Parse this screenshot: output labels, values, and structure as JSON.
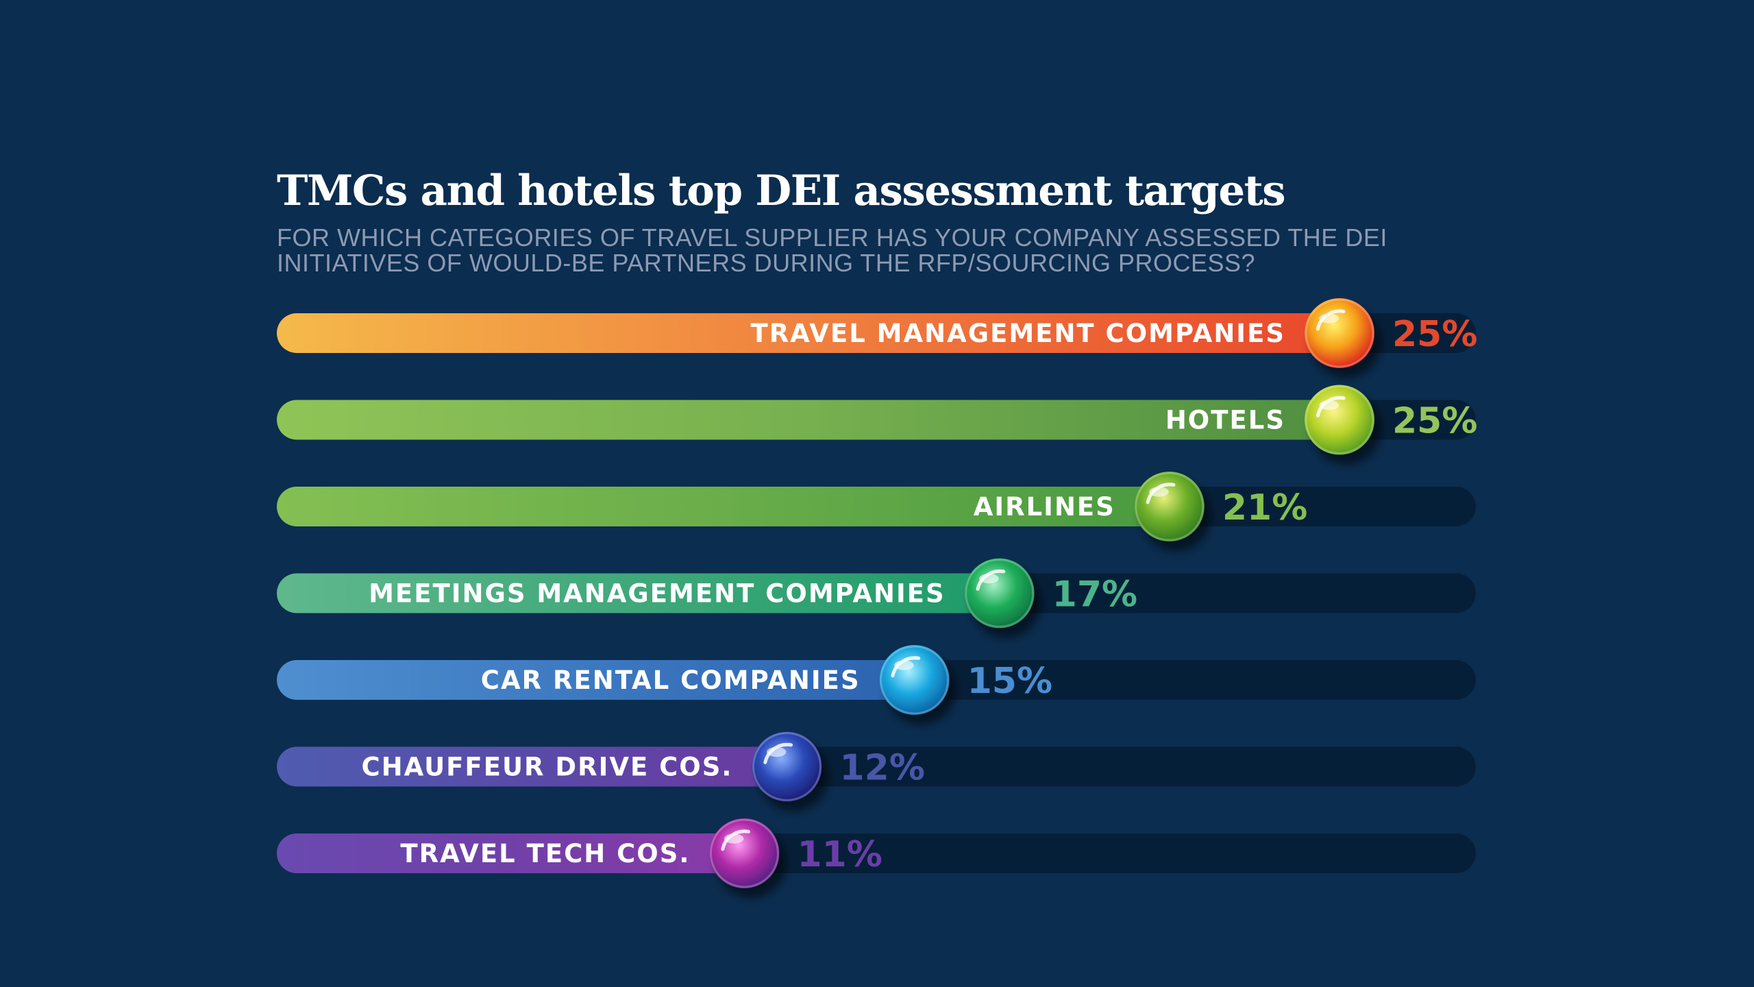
{
  "chart_data": {
    "type": "bar",
    "orientation": "horizontal",
    "title": "TMCs and hotels top DEI assessment targets",
    "subtitle": "FOR WHICH CATEGORIES OF TRAVEL SUPPLIER HAS YOUR COMPANY ASSESSED THE DEI INITIATIVES OF WOULD-BE PARTNERS DURING THE RFP/SOURCING PROCESS?",
    "xlim": [
      0,
      25
    ],
    "grid": false,
    "legend": "none",
    "bars": [
      {
        "label": "TRAVEL MANAGEMENT COMPANIES",
        "value": 25,
        "value_label": "25%",
        "colors": [
          "#f5b94a",
          "#f0813f",
          "#e9472c"
        ],
        "text_color": "#e5492d",
        "ball": [
          "#fff36a",
          "#f7a11a",
          "#d91e1e"
        ]
      },
      {
        "label": "HOTELS",
        "value": 25,
        "value_label": "25%",
        "colors": [
          "#8fc457",
          "#77b04f",
          "#4f8f40"
        ],
        "text_color": "#94c45a",
        "ball": [
          "#fff48a",
          "#b8d42a",
          "#4f9a1e"
        ]
      },
      {
        "label": "AIRLINES",
        "value": 21,
        "value_label": "21%",
        "colors": [
          "#84bf52",
          "#6aad4a",
          "#4a9a40"
        ],
        "text_color": "#84bf52",
        "ball": [
          "#e5f07a",
          "#6fb02a",
          "#2f7a1e"
        ]
      },
      {
        "label": "MEETINGS MANAGEMENT COMPANIES",
        "value": 17,
        "value_label": "17%",
        "colors": [
          "#5fb88d",
          "#3fa87a",
          "#1f9a6a"
        ],
        "text_color": "#4db38a",
        "ball": [
          "#a9f0c8",
          "#1fae5a",
          "#0c7040"
        ]
      },
      {
        "label": "CAR RENTAL COMPANIES",
        "value": 15,
        "value_label": "15%",
        "colors": [
          "#4f8fd0",
          "#3c78c0",
          "#2c63b0"
        ],
        "text_color": "#4b8ed1",
        "ball": [
          "#a8f0ff",
          "#1aa8e0",
          "#0a5ea0"
        ]
      },
      {
        "label": "CHAUFFEUR DRIVE COS.",
        "value": 12,
        "value_label": "12%",
        "colors": [
          "#4f5cb0",
          "#5a4aa8",
          "#6a3aa0"
        ],
        "text_color": "#4a56a8",
        "ball": [
          "#8ab0ff",
          "#2a4ab8",
          "#1a1a70"
        ]
      },
      {
        "label": "TRAVEL TECH COS.",
        "value": 11,
        "value_label": "11%",
        "colors": [
          "#6a4ab0",
          "#7040a8",
          "#8a3aa8"
        ],
        "text_color": "#6a3ea8",
        "ball": [
          "#ff9af0",
          "#b02aa8",
          "#502080"
        ]
      }
    ]
  }
}
